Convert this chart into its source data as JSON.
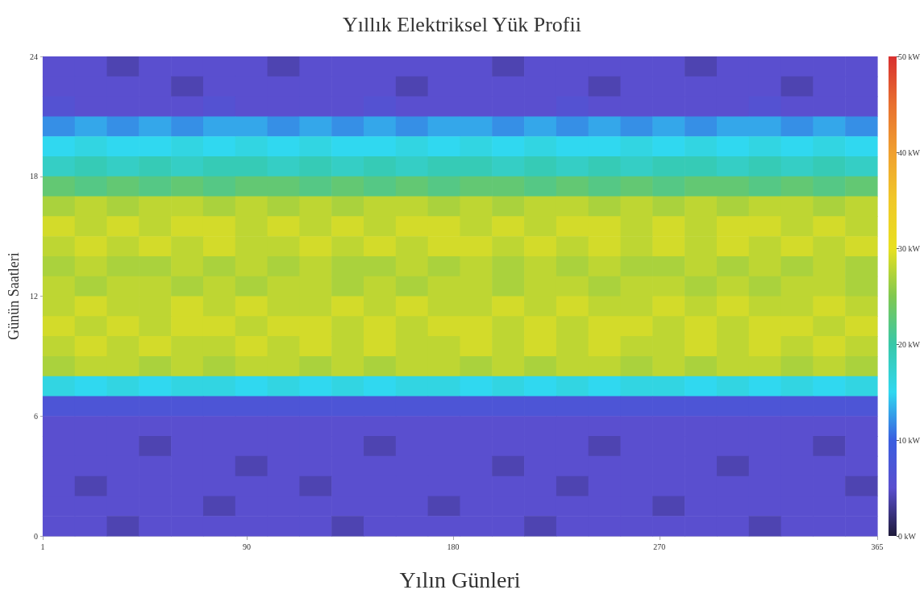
{
  "chart_data": {
    "type": "heatmap",
    "title": "Yıllık Elektriksel Yük Profii",
    "xlabel": "Yılın Günleri",
    "ylabel": "Günün Saatleri",
    "xlim": [
      1,
      365
    ],
    "xticks": [
      1,
      90,
      180,
      270,
      365
    ],
    "ylim": [
      0,
      24
    ],
    "yticks": [
      0,
      6,
      12,
      18,
      24
    ],
    "clim": [
      0,
      50
    ],
    "cticks": [
      {
        "value": 0,
        "label": "0 kW"
      },
      {
        "value": 10,
        "label": "10 kW"
      },
      {
        "value": 20,
        "label": "20 kW"
      },
      {
        "value": 30,
        "label": "30 kW"
      },
      {
        "value": 40,
        "label": "40 kW"
      },
      {
        "value": 50,
        "label": "50 kW"
      }
    ],
    "colors": [
      "#1e1a3a",
      "#5a4fcf",
      "#3a5ee0",
      "#30d8f0",
      "#38c8a8",
      "#80c850",
      "#e8e020",
      "#f0c828",
      "#f0a030",
      "#e87030",
      "#d83030"
    ],
    "x": [
      8,
      22,
      36,
      50,
      64,
      78,
      92,
      106,
      120,
      134,
      148,
      162,
      176,
      190,
      204,
      218,
      232,
      246,
      260,
      274,
      288,
      302,
      316,
      330,
      344,
      358
    ],
    "cells": [
      [
        5,
        5,
        4,
        5,
        5,
        5,
        5,
        4,
        5,
        5,
        5,
        5,
        5,
        5,
        4,
        5,
        5,
        5,
        5,
        5,
        4,
        5,
        5,
        5,
        5,
        5
      ],
      [
        5,
        5,
        5,
        5,
        4,
        5,
        5,
        5,
        5,
        5,
        5,
        4,
        5,
        5,
        5,
        5,
        5,
        4,
        5,
        5,
        5,
        5,
        5,
        4,
        5,
        5
      ],
      [
        6,
        5,
        5,
        5,
        5,
        6,
        5,
        5,
        5,
        5,
        6,
        5,
        5,
        5,
        5,
        5,
        6,
        5,
        5,
        5,
        5,
        5,
        6,
        5,
        5,
        5
      ],
      [
        12,
        13,
        12,
        13,
        12,
        13,
        13,
        12,
        13,
        12,
        13,
        12,
        13,
        13,
        12,
        13,
        12,
        13,
        12,
        13,
        12,
        13,
        13,
        12,
        13,
        12
      ],
      [
        15,
        16,
        15,
        15,
        16,
        15,
        16,
        15,
        16,
        15,
        15,
        16,
        15,
        16,
        15,
        16,
        15,
        15,
        16,
        15,
        16,
        15,
        16,
        15,
        16,
        15
      ],
      [
        18,
        19,
        18,
        19,
        18,
        19,
        19,
        18,
        19,
        18,
        19,
        18,
        19,
        19,
        18,
        19,
        18,
        19,
        18,
        19,
        19,
        18,
        19,
        18,
        19,
        18
      ],
      [
        23,
        22,
        23,
        22,
        23,
        22,
        23,
        23,
        22,
        23,
        22,
        23,
        22,
        23,
        23,
        22,
        23,
        22,
        23,
        22,
        23,
        23,
        22,
        23,
        22,
        23
      ],
      [
        27,
        28,
        27,
        28,
        28,
        27,
        28,
        27,
        28,
        27,
        28,
        28,
        27,
        28,
        27,
        28,
        28,
        27,
        28,
        27,
        28,
        27,
        28,
        28,
        27,
        28
      ],
      [
        29,
        28,
        29,
        28,
        29,
        29,
        28,
        29,
        28,
        29,
        28,
        29,
        29,
        28,
        29,
        28,
        29,
        29,
        28,
        29,
        28,
        29,
        29,
        28,
        29,
        28
      ],
      [
        28,
        29,
        28,
        29,
        28,
        29,
        28,
        28,
        29,
        28,
        29,
        28,
        29,
        29,
        28,
        29,
        28,
        29,
        28,
        29,
        28,
        29,
        28,
        29,
        28,
        29
      ],
      [
        27,
        28,
        27,
        27,
        28,
        27,
        28,
        27,
        28,
        27,
        27,
        28,
        27,
        28,
        27,
        28,
        27,
        28,
        27,
        27,
        28,
        27,
        28,
        27,
        28,
        27
      ],
      [
        28,
        27,
        28,
        28,
        27,
        28,
        27,
        28,
        28,
        27,
        28,
        27,
        28,
        28,
        27,
        28,
        28,
        27,
        28,
        28,
        27,
        28,
        27,
        28,
        28,
        27
      ],
      [
        28,
        29,
        28,
        28,
        29,
        28,
        29,
        28,
        28,
        29,
        28,
        29,
        28,
        28,
        29,
        28,
        29,
        28,
        28,
        29,
        28,
        29,
        28,
        28,
        29,
        28
      ],
      [
        29,
        28,
        29,
        28,
        29,
        29,
        28,
        29,
        29,
        28,
        29,
        28,
        29,
        29,
        28,
        29,
        28,
        29,
        29,
        28,
        29,
        28,
        29,
        29,
        28,
        29
      ],
      [
        28,
        29,
        28,
        29,
        28,
        28,
        29,
        28,
        29,
        28,
        29,
        28,
        28,
        29,
        28,
        29,
        28,
        29,
        28,
        28,
        29,
        28,
        29,
        28,
        29,
        28
      ],
      [
        27,
        28,
        28,
        27,
        28,
        27,
        28,
        28,
        27,
        28,
        27,
        28,
        28,
        27,
        28,
        27,
        28,
        28,
        27,
        28,
        27,
        28,
        28,
        27,
        28,
        27
      ],
      [
        16,
        15,
        16,
        15,
        16,
        16,
        15,
        16,
        15,
        16,
        15,
        16,
        16,
        15,
        16,
        15,
        16,
        15,
        16,
        16,
        15,
        16,
        15,
        16,
        15,
        16
      ],
      [
        7,
        7,
        7,
        7,
        7,
        7,
        7,
        7,
        7,
        7,
        7,
        7,
        7,
        7,
        7,
        7,
        7,
        7,
        7,
        7,
        7,
        7,
        7,
        7,
        7,
        7
      ],
      [
        5,
        5,
        5,
        5,
        5,
        5,
        5,
        5,
        5,
        5,
        5,
        5,
        5,
        5,
        5,
        5,
        5,
        5,
        5,
        5,
        5,
        5,
        5,
        5,
        5,
        5
      ],
      [
        5,
        5,
        5,
        4,
        5,
        5,
        5,
        5,
        5,
        5,
        4,
        5,
        5,
        5,
        5,
        5,
        5,
        4,
        5,
        5,
        5,
        5,
        5,
        5,
        4,
        5
      ],
      [
        5,
        5,
        5,
        5,
        5,
        5,
        4,
        5,
        5,
        5,
        5,
        5,
        5,
        5,
        4,
        5,
        5,
        5,
        5,
        5,
        5,
        4,
        5,
        5,
        5,
        5
      ],
      [
        5,
        4,
        5,
        5,
        5,
        5,
        5,
        5,
        4,
        5,
        5,
        5,
        5,
        5,
        5,
        5,
        4,
        5,
        5,
        5,
        5,
        5,
        5,
        5,
        5,
        4
      ],
      [
        5,
        5,
        5,
        5,
        5,
        4,
        5,
        5,
        5,
        5,
        5,
        5,
        4,
        5,
        5,
        5,
        5,
        5,
        5,
        4,
        5,
        5,
        5,
        5,
        5,
        5
      ],
      [
        5,
        5,
        4,
        5,
        5,
        5,
        5,
        5,
        5,
        4,
        5,
        5,
        5,
        5,
        5,
        4,
        5,
        5,
        5,
        5,
        5,
        5,
        4,
        5,
        5,
        5
      ]
    ]
  }
}
